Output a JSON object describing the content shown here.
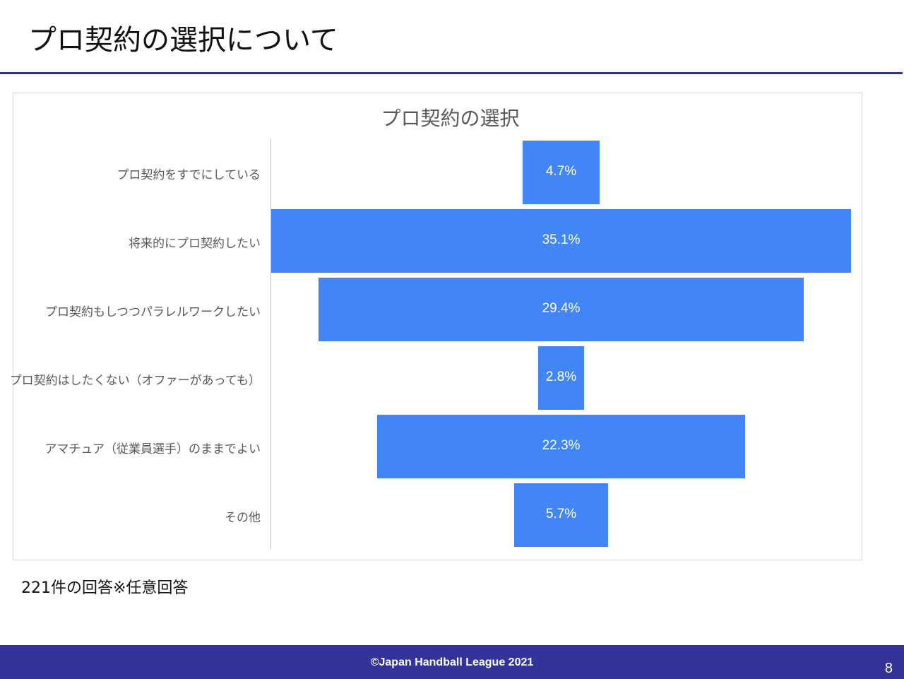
{
  "slide": {
    "title": "プロ契約の選択について",
    "note": "221件の回答※任意回答",
    "footer": "©Japan Handball League  2021",
    "page_number": "8"
  },
  "colors": {
    "bar": "#4285f4",
    "accent": "#2f3192",
    "footer_bg": "#333399"
  },
  "chart_data": {
    "type": "bar",
    "orientation": "horizontal-centered",
    "title": "プロ契約の選択",
    "categories": [
      "プロ契約をすでにしている",
      "将来的にプロ契約したい",
      "プロ契約もしつつパラレルワークしたい",
      "プロ契約はしたくない（オファーがあっても）",
      "アマチュア（従業員選手）のままでよい",
      "その他"
    ],
    "values": [
      4.7,
      35.1,
      29.4,
      2.8,
      22.3,
      5.7
    ],
    "value_labels": [
      "4.7%",
      "35.1%",
      "29.4%",
      "2.8%",
      "22.3%",
      "5.7%"
    ],
    "unit": "%",
    "xlabel": "",
    "ylabel": "",
    "grid": false,
    "legend": "none"
  }
}
